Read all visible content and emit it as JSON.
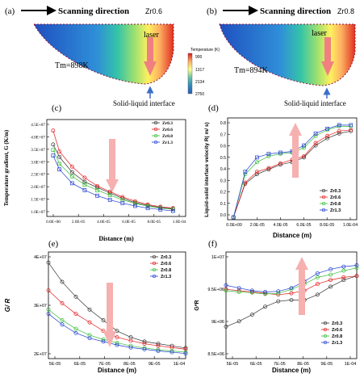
{
  "panel_a": {
    "letter": "(a)",
    "direction": "Scanning direction",
    "alloy": "Zr0.6",
    "laser": "laser",
    "tm": "Tm=898K",
    "interface": "Solid-liquid interface"
  },
  "panel_b": {
    "letter": "(b)",
    "direction": "Scanning direction",
    "alloy": "Zr0.8",
    "laser": "laser",
    "tm": "Tm=894K",
    "interface": "Solid-liquid interface"
  },
  "colorbar": {
    "title": "Temperature (K)",
    "ticks": [
      "900",
      "1317",
      "2134",
      "2750"
    ],
    "colors": [
      "#d7191c",
      "#fdae61",
      "#ffff8c",
      "#66c2a5",
      "#3288bd",
      "#2b5cb8"
    ]
  },
  "colors": {
    "arrow": "#f08080",
    "series": [
      "#333333",
      "#e31a1c",
      "#33bb33",
      "#1f3ccf"
    ],
    "interface_dots": "#cc2255",
    "interface_arrow": "#3a6fc8"
  },
  "chart_data": [
    {
      "panel": "(c)",
      "type": "scatter",
      "xlabel": "Distance  (m)",
      "ylabel": "Temperature gradient, G (K/m)",
      "xticks": [
        "0.0E+00",
        "2.0E-05",
        "4.0E-05",
        "6.0E-05",
        "8.0E-05",
        "1.0E-04"
      ],
      "yticks": [
        "1.0E+07",
        "1.5E+07",
        "2.0E+07",
        "2.5E+07",
        "3.0E+07",
        "3.5E+07",
        "4.0E+07",
        "4.5E+07"
      ],
      "xlim": [
        0,
        0.00011
      ],
      "ylim": [
        10000000,
        45000000
      ],
      "legend": "top-right",
      "series": [
        {
          "name": "Zr0.3",
          "marker": "open-circle",
          "x": [
            5e-06,
            1e-05,
            2e-05,
            3e-05,
            4e-05,
            5e-05,
            6e-05,
            7e-05,
            8e-05,
            9e-05,
            0.0001
          ],
          "y": [
            36000000,
            31500000,
            26000000,
            22500000,
            20500000,
            18500000,
            16500000,
            15000000,
            14000000,
            13200000,
            12800000
          ]
        },
        {
          "name": "Zr0.6",
          "marker": "open-circle",
          "x": [
            5e-06,
            1e-05,
            2e-05,
            3e-05,
            4e-05,
            5e-05,
            6e-05,
            7e-05,
            8e-05,
            9e-05,
            0.0001
          ],
          "y": [
            41000000,
            33500000,
            28000000,
            24000000,
            21000000,
            19000000,
            17000000,
            15500000,
            14300000,
            13500000,
            13000000
          ]
        },
        {
          "name": "Zr0.8",
          "marker": "open-square",
          "x": [
            5e-06,
            1e-05,
            2e-05,
            3e-05,
            4e-05,
            5e-05,
            6e-05,
            7e-05,
            8e-05,
            9e-05,
            0.0001
          ],
          "y": [
            34000000,
            29000000,
            24500000,
            21500000,
            19500000,
            17700000,
            16000000,
            14700000,
            13700000,
            13000000,
            12600000
          ]
        },
        {
          "name": "Zr1.3",
          "marker": "open-square",
          "x": [
            5e-06,
            1e-05,
            2e-05,
            3e-05,
            4e-05,
            5e-05,
            6e-05,
            7e-05,
            8e-05,
            9e-05,
            0.0001
          ],
          "y": [
            32000000,
            27000000,
            22000000,
            19500000,
            17500000,
            16000000,
            14800000,
            13800000,
            13000000,
            12500000,
            12000000
          ]
        }
      ]
    },
    {
      "panel": "(d)",
      "type": "scatter",
      "xlabel": "Distance (m)",
      "ylabel": "Liquid-solid interface velocity R( m/ s)",
      "xticks": [
        "0.0E+00",
        "2.0E-05",
        "4.0E-05",
        "6.0E-05",
        "8.0E-05",
        "1.0E-04"
      ],
      "yticks": [
        "0.0",
        "0.1",
        "0.2",
        "0.3",
        "0.4",
        "0.5",
        "0.6",
        "0.7",
        "0.8"
      ],
      "xlim": [
        -5e-06,
        0.000105
      ],
      "ylim": [
        0,
        0.85
      ],
      "legend": "bottom-right",
      "series": [
        {
          "name": "Zr0.3",
          "marker": "open-circle",
          "x": [
            0,
            1e-05,
            2e-05,
            3e-05,
            4e-05,
            5e-05,
            6e-05,
            7e-05,
            8e-05,
            9e-05,
            0.0001
          ],
          "y": [
            0.02,
            0.3,
            0.38,
            0.42,
            0.46,
            0.48,
            0.52,
            0.62,
            0.68,
            0.72,
            0.74
          ]
        },
        {
          "name": "Zr0.6",
          "marker": "open-circle",
          "x": [
            0,
            1e-05,
            2e-05,
            3e-05,
            4e-05,
            5e-05,
            6e-05,
            7e-05,
            8e-05,
            9e-05,
            0.0001
          ],
          "y": [
            0.02,
            0.31,
            0.4,
            0.43,
            0.47,
            0.5,
            0.53,
            0.64,
            0.7,
            0.74,
            0.75
          ]
        },
        {
          "name": "Zr0.8",
          "marker": "open-circle",
          "x": [
            0,
            1e-05,
            2e-05,
            3e-05,
            4e-05,
            5e-05,
            6e-05,
            7e-05,
            8e-05,
            9e-05,
            0.0001
          ],
          "y": [
            0.02,
            0.38,
            0.48,
            0.53,
            0.55,
            0.56,
            0.6,
            0.7,
            0.75,
            0.78,
            0.78
          ]
        },
        {
          "name": "Zr1.3",
          "marker": "open-square",
          "x": [
            0,
            1e-05,
            2e-05,
            3e-05,
            4e-05,
            5e-05,
            6e-05,
            7e-05,
            8e-05,
            9e-05,
            0.0001
          ],
          "y": [
            0.02,
            0.4,
            0.52,
            0.55,
            0.56,
            0.57,
            0.62,
            0.72,
            0.76,
            0.79,
            0.79
          ]
        }
      ]
    },
    {
      "panel": "(e)",
      "type": "scatter",
      "xlabel": "Distance (m)",
      "ylabel": "G/ R",
      "xticks": [
        "5E-05",
        "6E-05",
        "7E-05",
        "8E-05",
        "9E-05",
        "1E-04"
      ],
      "yticks": [
        "2E+07",
        "3E+07",
        "4E+07"
      ],
      "xlim": [
        5e-05,
        0.0001
      ],
      "ylim": [
        15000000,
        40000000
      ],
      "legend": "top-right",
      "series": [
        {
          "name": "Zr0.3",
          "marker": "open-circle",
          "x": [
            5e-05,
            5.5e-05,
            6e-05,
            6.5e-05,
            7e-05,
            7.5e-05,
            8e-05,
            8.5e-05,
            9e-05,
            9.5e-05,
            0.0001
          ],
          "y": [
            37500000,
            33000000,
            29500000,
            26500000,
            24000000,
            21500000,
            20000000,
            19000000,
            18500000,
            18000000,
            17500000
          ]
        },
        {
          "name": "Zr0.6",
          "marker": "open-circle",
          "x": [
            5e-05,
            5.5e-05,
            6e-05,
            6.5e-05,
            7e-05,
            7.5e-05,
            8e-05,
            8.5e-05,
            9e-05,
            9.5e-05,
            0.0001
          ],
          "y": [
            31000000,
            28000000,
            25500000,
            23500000,
            21500000,
            20000000,
            19200000,
            18500000,
            18000000,
            17600000,
            17200000
          ]
        },
        {
          "name": "Zr0.8",
          "marker": "open-circle",
          "x": [
            5e-05,
            5.5e-05,
            6e-05,
            6.5e-05,
            7e-05,
            7.5e-05,
            8e-05,
            8.5e-05,
            9e-05,
            9.5e-05,
            0.0001
          ],
          "y": [
            26500000,
            24000000,
            22000000,
            20500000,
            19500000,
            18700000,
            18000000,
            17500000,
            17100000,
            16800000,
            16500000
          ]
        },
        {
          "name": "Zr1.3",
          "marker": "open-circle",
          "x": [
            5e-05,
            5.5e-05,
            6e-05,
            6.5e-05,
            7e-05,
            7.5e-05,
            8e-05,
            8.5e-05,
            9e-05,
            9.5e-05,
            0.0001
          ],
          "y": [
            25500000,
            23000000,
            21000000,
            19800000,
            19000000,
            18200000,
            17600000,
            17200000,
            16800000,
            16500000,
            16200000
          ]
        }
      ]
    },
    {
      "panel": "(f)",
      "type": "scatter",
      "xlabel": "Distance (m)",
      "ylabel": "G*R",
      "xticks": [
        "5E-05",
        "6E-05",
        "7E-05",
        "8E-05",
        "9E-05",
        "1E-04"
      ],
      "yticks": [
        "8.5E+06",
        "9E+06",
        "9.5E+06",
        "1E+07"
      ],
      "xlim": [
        5e-05,
        0.0001
      ],
      "ylim": [
        8400000,
        10000000
      ],
      "legend": "bottom-right",
      "series": [
        {
          "name": "Zr0.3",
          "marker": "open-circle",
          "x": [
            5e-05,
            5.5e-05,
            6e-05,
            6.5e-05,
            7e-05,
            7.5e-05,
            8e-05,
            8.5e-05,
            9e-05,
            9.5e-05,
            0.0001
          ],
          "y": [
            8880000,
            8960000,
            9060000,
            9180000,
            9260000,
            9280000,
            9280000,
            9360000,
            9480000,
            9580000,
            9640000
          ]
        },
        {
          "name": "Zr0.6",
          "marker": "open-circle",
          "x": [
            5e-05,
            5.5e-05,
            6e-05,
            6.5e-05,
            7e-05,
            7.5e-05,
            8e-05,
            8.5e-05,
            9e-05,
            9.5e-05,
            0.0001
          ],
          "y": [
            9440000,
            9420000,
            9400000,
            9380000,
            9360000,
            9380000,
            9420000,
            9520000,
            9580000,
            9620000,
            9640000
          ]
        },
        {
          "name": "Zr0.8",
          "marker": "open-circle",
          "x": [
            5e-05,
            5.5e-05,
            6e-05,
            6.5e-05,
            7e-05,
            7.5e-05,
            8e-05,
            8.5e-05,
            9e-05,
            9.5e-05,
            0.0001
          ],
          "y": [
            9420000,
            9400000,
            9390000,
            9370000,
            9380000,
            9440000,
            9520000,
            9620000,
            9660000,
            9720000,
            9760000
          ]
        },
        {
          "name": "Zr1.3",
          "marker": "open-circle",
          "x": [
            5e-05,
            5.5e-05,
            6e-05,
            6.5e-05,
            7e-05,
            7.5e-05,
            8e-05,
            8.5e-05,
            9e-05,
            9.5e-05,
            0.0001
          ],
          "y": [
            9500000,
            9460000,
            9420000,
            9400000,
            9410000,
            9460000,
            9560000,
            9680000,
            9740000,
            9780000,
            9800000
          ]
        }
      ]
    }
  ]
}
